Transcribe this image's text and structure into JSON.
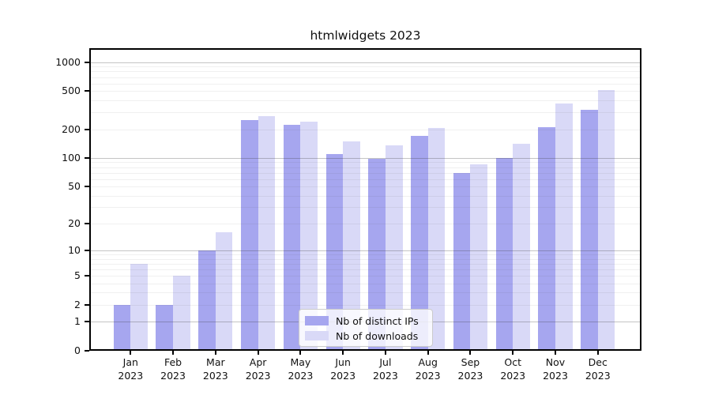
{
  "chart_data": {
    "type": "bar",
    "title": "htmlwidgets 2023",
    "categories": [
      "Jan",
      "Feb",
      "Mar",
      "Apr",
      "May",
      "Jun",
      "Jul",
      "Aug",
      "Sep",
      "Oct",
      "Nov",
      "Dec"
    ],
    "year": "2023",
    "series": [
      {
        "name": "Nb of distinct IPs",
        "color": "#a6a6ef",
        "values": [
          2,
          2,
          10,
          250,
          222,
          110,
          97,
          170,
          70,
          99,
          210,
          321
        ]
      },
      {
        "name": "Nb of downloads",
        "color": "#d9d9f7",
        "values": [
          7,
          5,
          16,
          275,
          240,
          150,
          136,
          207,
          85,
          140,
          373,
          515
        ]
      }
    ],
    "y_scale": "log1p",
    "y_range": [
      0,
      1400
    ],
    "y_ticks": [
      0,
      1,
      2,
      5,
      10,
      20,
      50,
      100,
      200,
      500,
      1000
    ],
    "y_major_gridlines": [
      1,
      10,
      100,
      1000
    ],
    "y_minor_gridlines": [
      2,
      3,
      4,
      5,
      6,
      7,
      8,
      9,
      20,
      30,
      40,
      50,
      60,
      70,
      80,
      90,
      200,
      300,
      400,
      500,
      600,
      700,
      800,
      900
    ],
    "grid": "horizontal, drawn above bars",
    "legend_position": "lower center-right inside plot",
    "axis_color": "#000000",
    "background_color": "#ffffff"
  }
}
